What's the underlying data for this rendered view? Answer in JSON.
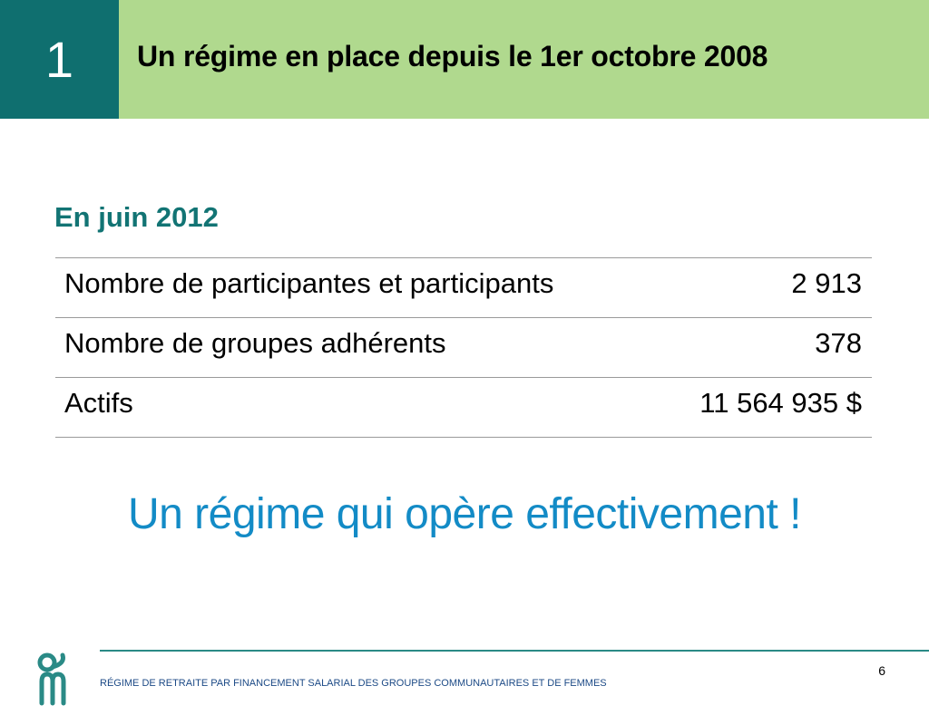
{
  "header": {
    "section_number": "1",
    "title": "Un régime en place depuis le 1er octobre 2008"
  },
  "section_heading": "En juin 2012",
  "stats": [
    {
      "label": "Nombre de participantes et participants",
      "value": "2 913"
    },
    {
      "label": "Nombre de groupes adhérents",
      "value": "378"
    },
    {
      "label": "Actifs",
      "value": "11 564 935 $"
    }
  ],
  "tagline": "Un régime qui opère effectivement !",
  "footer": {
    "organization": "RÉGIME DE RETRAITE PAR FINANCEMENT SALARIAL DES GROUPES COMMUNAUTAIRES ET DE FEMMES",
    "page_number": "6",
    "logo_icon": "organization-logo-icon"
  },
  "colors": {
    "teal": "#0f6f6f",
    "light_green": "#b0d98e",
    "heading_teal": "#127474",
    "tagline_blue": "#138bc6",
    "footer_navy": "#1c4a86"
  }
}
